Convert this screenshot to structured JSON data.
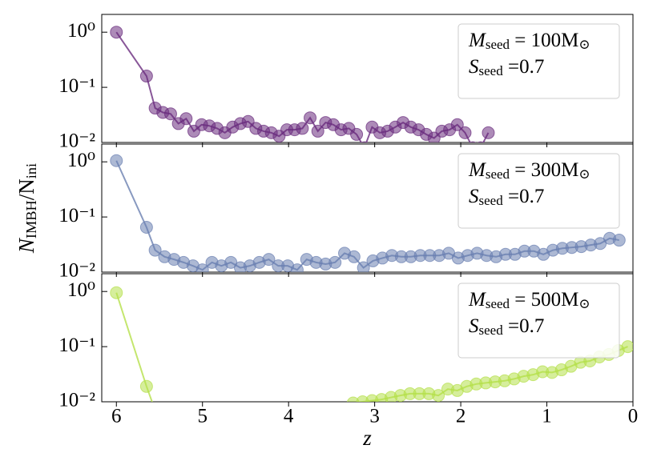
{
  "ylabel": [
    "N",
    "IMBH",
    "/N",
    "ini"
  ],
  "chart_data": [
    {
      "type": "line",
      "color": "#6a2c7e",
      "log_scale": true,
      "xlim": [
        6.17,
        0
      ],
      "xticks": [
        6,
        5,
        4,
        3,
        2,
        1,
        0
      ],
      "ylim": [
        0.01,
        2.1
      ],
      "yticks": [
        {
          "value": 1,
          "label": "10⁰"
        },
        {
          "value": 0.1,
          "label": "10⁻¹"
        },
        {
          "value": 0.01,
          "label": "10⁻²"
        }
      ],
      "legend_lines": [
        [
          "M",
          "seed",
          " = 100M",
          "⊙"
        ],
        [
          "S",
          "seed",
          " =0.7"
        ]
      ],
      "x": [
        6,
        5.65,
        5.55,
        5.46,
        5.37,
        5.28,
        5.19,
        5.1,
        5.01,
        4.92,
        4.83,
        4.74,
        4.65,
        4.56,
        4.47,
        4.38,
        4.29,
        4.2,
        4.11,
        4.02,
        3.93,
        3.84,
        3.75,
        3.66,
        3.57,
        3.48,
        3.39,
        3.3,
        3.21,
        3.12,
        3.03,
        2.94,
        2.85,
        2.76,
        2.67,
        2.58,
        2.49,
        2.4,
        2.31,
        2.22,
        2.13,
        2.04,
        1.95,
        1.86,
        1.77,
        1.68
      ],
      "values": [
        1.0,
        0.16,
        0.042,
        0.035,
        0.033,
        0.022,
        0.027,
        0.016,
        0.021,
        0.02,
        0.018,
        0.015,
        0.019,
        0.022,
        0.024,
        0.018,
        0.016,
        0.015,
        0.013,
        0.017,
        0.017,
        0.018,
        0.028,
        0.016,
        0.023,
        0.021,
        0.017,
        0.018,
        0.014,
        0.008,
        0.019,
        0.015,
        0.016,
        0.019,
        0.023,
        0.019,
        0.017,
        0.014,
        0.012,
        0.016,
        0.017,
        0.021,
        0.015,
        0.008,
        0.008,
        0.015
      ]
    },
    {
      "type": "line",
      "color": "#6a7fb0",
      "log_scale": true,
      "xlim": [
        6.17,
        0
      ],
      "xticks": [
        6,
        5,
        4,
        3,
        2,
        1,
        0
      ],
      "ylim": [
        0.01,
        2.1
      ],
      "yticks": [
        {
          "value": 1,
          "label": "10⁰"
        },
        {
          "value": 0.1,
          "label": "10⁻¹"
        },
        {
          "value": 0.01,
          "label": "10⁻²"
        }
      ],
      "legend_lines": [
        [
          "M",
          "seed",
          " = 300M",
          "⊙"
        ],
        [
          "S",
          "seed",
          " =0.7"
        ]
      ],
      "x": [
        6,
        5.65,
        5.55,
        5.44,
        5.33,
        5.22,
        5.11,
        5.0,
        4.89,
        4.78,
        4.67,
        4.56,
        4.45,
        4.34,
        4.23,
        4.12,
        4.01,
        3.9,
        3.79,
        3.68,
        3.57,
        3.46,
        3.35,
        3.24,
        3.13,
        3.02,
        2.91,
        2.8,
        2.69,
        2.58,
        2.47,
        2.36,
        2.25,
        2.14,
        2.03,
        1.92,
        1.81,
        1.7,
        1.59,
        1.48,
        1.37,
        1.26,
        1.15,
        1.04,
        0.93,
        0.82,
        0.71,
        0.6,
        0.49,
        0.38,
        0.27,
        0.16
      ],
      "values": [
        1.05,
        0.065,
        0.025,
        0.019,
        0.017,
        0.015,
        0.013,
        0.011,
        0.015,
        0.013,
        0.015,
        0.012,
        0.013,
        0.015,
        0.017,
        0.013,
        0.013,
        0.011,
        0.017,
        0.015,
        0.014,
        0.015,
        0.022,
        0.019,
        0.012,
        0.016,
        0.018,
        0.02,
        0.019,
        0.019,
        0.02,
        0.02,
        0.02,
        0.022,
        0.018,
        0.02,
        0.022,
        0.02,
        0.019,
        0.021,
        0.021,
        0.024,
        0.024,
        0.021,
        0.025,
        0.027,
        0.028,
        0.029,
        0.031,
        0.033,
        0.041,
        0.038
      ]
    },
    {
      "type": "line",
      "color": "#b5e04a",
      "log_scale": true,
      "xlim": [
        6.17,
        0
      ],
      "xticks": [
        6,
        5,
        4,
        3,
        2,
        1,
        0
      ],
      "ylim": [
        0.01,
        2.1
      ],
      "yticks": [
        {
          "value": 1,
          "label": "10⁰"
        },
        {
          "value": 0.1,
          "label": "10⁻¹"
        },
        {
          "value": 0.01,
          "label": "10⁻²"
        }
      ],
      "xlabel": "z",
      "legend_lines": [
        [
          "M",
          "seed",
          " = 500M",
          "⊙"
        ],
        [
          "S",
          "seed",
          " =0.7"
        ]
      ],
      "x": [
        6,
        5.65,
        5.55,
        4.5,
        3.25,
        3.14,
        3.03,
        2.92,
        2.81,
        2.7,
        2.59,
        2.48,
        2.37,
        2.26,
        2.15,
        2.04,
        1.93,
        1.82,
        1.71,
        1.6,
        1.49,
        1.38,
        1.27,
        1.16,
        1.05,
        0.94,
        0.83,
        0.72,
        0.61,
        0.5,
        0.39,
        0.28,
        0.17,
        0.06
      ],
      "values": [
        0.95,
        0.019,
        0.007,
        null,
        0.0095,
        0.01,
        0.0105,
        0.011,
        0.012,
        0.013,
        0.014,
        0.014,
        0.014,
        0.013,
        0.017,
        0.016,
        0.019,
        0.021,
        0.022,
        0.023,
        0.024,
        0.026,
        0.029,
        0.031,
        0.035,
        0.034,
        0.038,
        0.044,
        0.052,
        0.055,
        0.065,
        0.072,
        0.085,
        0.1
      ]
    }
  ]
}
